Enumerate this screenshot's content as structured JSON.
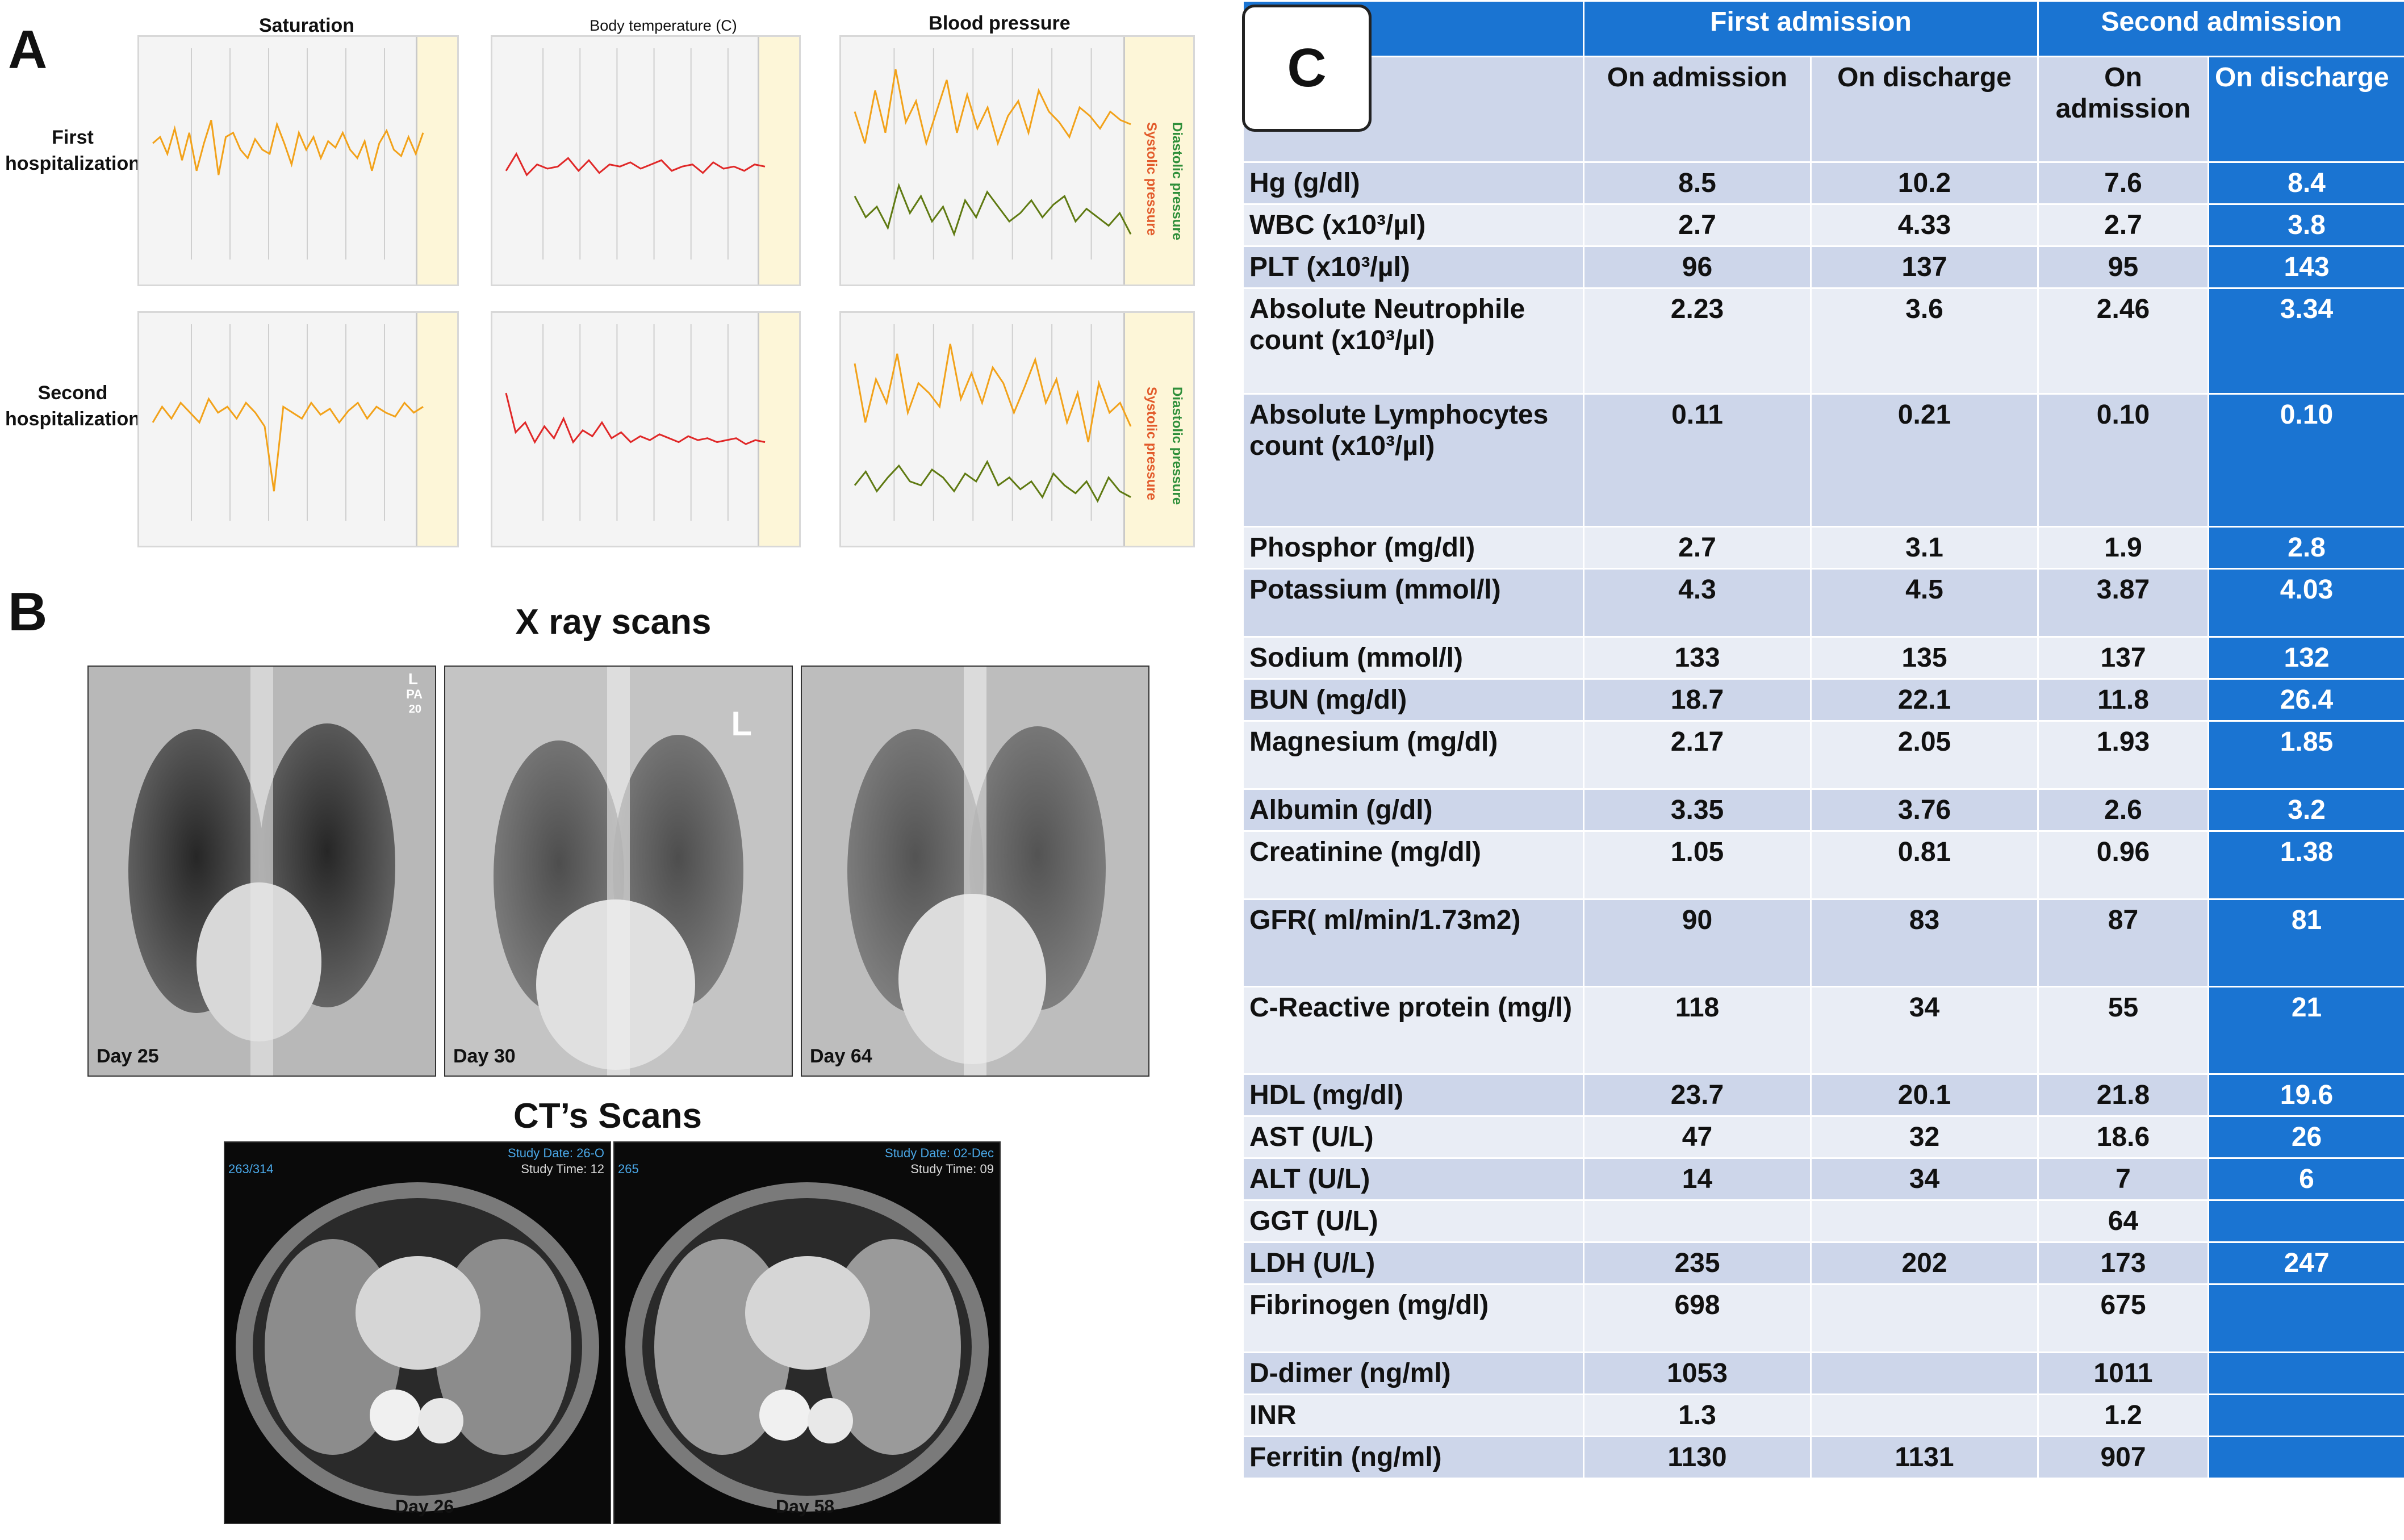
{
  "panel_a": {
    "letter": "A",
    "titles": [
      "Saturation",
      "Body temperature (C)",
      "Blood pressure"
    ],
    "rows": [
      "First\nhospitalization",
      "Second\nhospitalization"
    ],
    "bp_labels": {
      "systolic": "Systolic pressure",
      "diastolic": "Diastolic pressure"
    },
    "colors": {
      "saturation": "#f2a21a",
      "temperature": "#e02828",
      "systolic": "#f2a21a",
      "diastolic": "#5f7a12"
    },
    "series": {
      "first_sat": [
        0.55,
        0.58,
        0.5,
        0.62,
        0.47,
        0.6,
        0.42,
        0.55,
        0.66,
        0.4,
        0.58,
        0.6,
        0.52,
        0.48,
        0.57,
        0.52,
        0.5,
        0.64,
        0.55,
        0.45,
        0.6,
        0.52,
        0.58,
        0.48,
        0.56,
        0.53,
        0.6,
        0.52,
        0.48,
        0.56,
        0.42,
        0.55,
        0.61,
        0.52,
        0.49,
        0.58,
        0.5,
        0.6
      ],
      "first_temp": [
        0.42,
        0.5,
        0.4,
        0.45,
        0.43,
        0.44,
        0.48,
        0.42,
        0.47,
        0.41,
        0.45,
        0.44,
        0.46,
        0.43,
        0.45,
        0.47,
        0.42,
        0.44,
        0.45,
        0.41,
        0.46,
        0.43,
        0.44,
        0.42,
        0.45,
        0.44
      ],
      "first_sys": [
        0.7,
        0.55,
        0.8,
        0.6,
        0.9,
        0.65,
        0.75,
        0.55,
        0.7,
        0.85,
        0.6,
        0.78,
        0.62,
        0.72,
        0.55,
        0.68,
        0.75,
        0.6,
        0.8,
        0.7,
        0.65,
        0.58,
        0.72,
        0.68,
        0.62,
        0.7,
        0.66,
        0.64
      ],
      "first_dia": [
        0.3,
        0.2,
        0.25,
        0.15,
        0.35,
        0.22,
        0.3,
        0.18,
        0.25,
        0.12,
        0.28,
        0.2,
        0.32,
        0.25,
        0.18,
        0.22,
        0.28,
        0.2,
        0.26,
        0.3,
        0.18,
        0.24,
        0.2,
        0.16,
        0.22,
        0.12
      ],
      "second_sat": [
        0.5,
        0.58,
        0.52,
        0.6,
        0.55,
        0.5,
        0.62,
        0.55,
        0.58,
        0.52,
        0.6,
        0.55,
        0.48,
        0.15,
        0.58,
        0.55,
        0.52,
        0.6,
        0.54,
        0.57,
        0.5,
        0.56,
        0.6,
        0.52,
        0.58,
        0.55,
        0.53,
        0.6,
        0.55,
        0.58
      ],
      "second_temp": [
        0.65,
        0.45,
        0.5,
        0.4,
        0.48,
        0.42,
        0.52,
        0.4,
        0.46,
        0.43,
        0.5,
        0.42,
        0.45,
        0.4,
        0.43,
        0.41,
        0.44,
        0.42,
        0.4,
        0.43,
        0.41,
        0.42,
        0.4,
        0.41,
        0.42,
        0.39,
        0.41,
        0.4
      ],
      "second_sys": [
        0.8,
        0.5,
        0.72,
        0.6,
        0.85,
        0.55,
        0.7,
        0.65,
        0.58,
        0.9,
        0.62,
        0.75,
        0.6,
        0.78,
        0.7,
        0.55,
        0.68,
        0.82,
        0.6,
        0.72,
        0.5,
        0.65,
        0.4,
        0.7,
        0.55,
        0.6,
        0.48
      ],
      "second_dia": [
        0.18,
        0.25,
        0.15,
        0.22,
        0.28,
        0.2,
        0.18,
        0.26,
        0.22,
        0.15,
        0.24,
        0.2,
        0.3,
        0.18,
        0.22,
        0.16,
        0.2,
        0.12,
        0.24,
        0.18,
        0.14,
        0.2,
        0.1,
        0.22,
        0.15,
        0.12
      ]
    }
  },
  "panel_b": {
    "letter": "B",
    "xray_title": "X ray scans",
    "ct_title": "CT’s Scans",
    "xray_days": [
      "Day 25",
      "Day 30",
      "Day 64"
    ],
    "xray_marks": [
      "L",
      "PA",
      "20",
      "L"
    ],
    "ct_days": [
      "Day 26",
      "Day 58"
    ],
    "ct_meta": {
      "study_date_1": "Study Date: 26-O",
      "study_time_1": "Study Time: 12",
      "study_date_2": "Study Date: 02-Dec",
      "study_time_2": "Study Time: 09",
      "series_1": "263/314",
      "series_2": "265"
    }
  },
  "panel_c": {
    "letter": "C",
    "headers": {
      "first": "First admission",
      "second": "Second admission"
    },
    "subheaders": [
      "On admission",
      "On discharge",
      "On admission",
      "On discharge"
    ],
    "rows": [
      {
        "name": "Hg (g/dl)",
        "v": [
          "8.5",
          "10.2",
          "7.6",
          "8.4"
        ]
      },
      {
        "name": "WBC (x10³/µl)",
        "v": [
          "2.7",
          "4.33",
          "2.7",
          "3.8"
        ]
      },
      {
        "name": "PLT (x10³/µl)",
        "v": [
          "96",
          "137",
          "95",
          "143"
        ]
      },
      {
        "name": "Absolute Neutrophile count (x10³/µl)",
        "v": [
          "2.23",
          "3.6",
          "2.46",
          "3.34"
        ]
      },
      {
        "name": "Absolute Lymphocytes count (x10³/µl)",
        "v": [
          "0.11",
          "0.21",
          "0.10",
          "0.10"
        ]
      },
      {
        "name": "Phosphor (mg/dl)",
        "v": [
          "2.7",
          "3.1",
          "1.9",
          "2.8"
        ]
      },
      {
        "name": "Potassium (mmol/l)",
        "v": [
          "4.3",
          "4.5",
          "3.87",
          "4.03"
        ]
      },
      {
        "name": "Sodium (mmol/l)",
        "v": [
          "133",
          "135",
          "137",
          "132"
        ]
      },
      {
        "name": "BUN (mg/dl)",
        "v": [
          "18.7",
          "22.1",
          "11.8",
          "26.4"
        ]
      },
      {
        "name": "Magnesium (mg/dl)",
        "v": [
          "2.17",
          "2.05",
          "1.93",
          "1.85"
        ]
      },
      {
        "name": "Albumin (g/dl)",
        "v": [
          "3.35",
          "3.76",
          "2.6",
          "3.2"
        ]
      },
      {
        "name": "Creatinine (mg/dl)",
        "v": [
          "1.05",
          "0.81",
          "0.96",
          "1.38"
        ]
      },
      {
        "name": "GFR( ml/min/1.73m2)",
        "v": [
          "90",
          "83",
          "87",
          "81"
        ]
      },
      {
        "name": "C-Reactive protein (mg/l)",
        "v": [
          "118",
          "34",
          "55",
          "21"
        ]
      },
      {
        "name": "HDL (mg/dl)",
        "v": [
          "23.7",
          "20.1",
          "21.8",
          "19.6"
        ]
      },
      {
        "name": "AST (U/L)",
        "v": [
          "47",
          "32",
          "18.6",
          "26"
        ]
      },
      {
        "name": "ALT  (U/L)",
        "v": [
          "14",
          "34",
          "7",
          "6"
        ]
      },
      {
        "name": "GGT (U/L)",
        "v": [
          "",
          "",
          "64",
          ""
        ]
      },
      {
        "name": "LDH (U/L)",
        "v": [
          "235",
          "202",
          "173",
          "247"
        ]
      },
      {
        "name": "Fibrinogen (mg/dl)",
        "v": [
          "698",
          "",
          "675",
          ""
        ]
      },
      {
        "name": "D-dimer (ng/ml)",
        "v": [
          "1053",
          "",
          "1011",
          ""
        ]
      },
      {
        "name": "INR",
        "v": [
          "1.3",
          "",
          "1.2",
          ""
        ]
      },
      {
        "name": "Ferritin (ng/ml)",
        "v": [
          "1130",
          "1131",
          "907",
          ""
        ]
      }
    ]
  }
}
